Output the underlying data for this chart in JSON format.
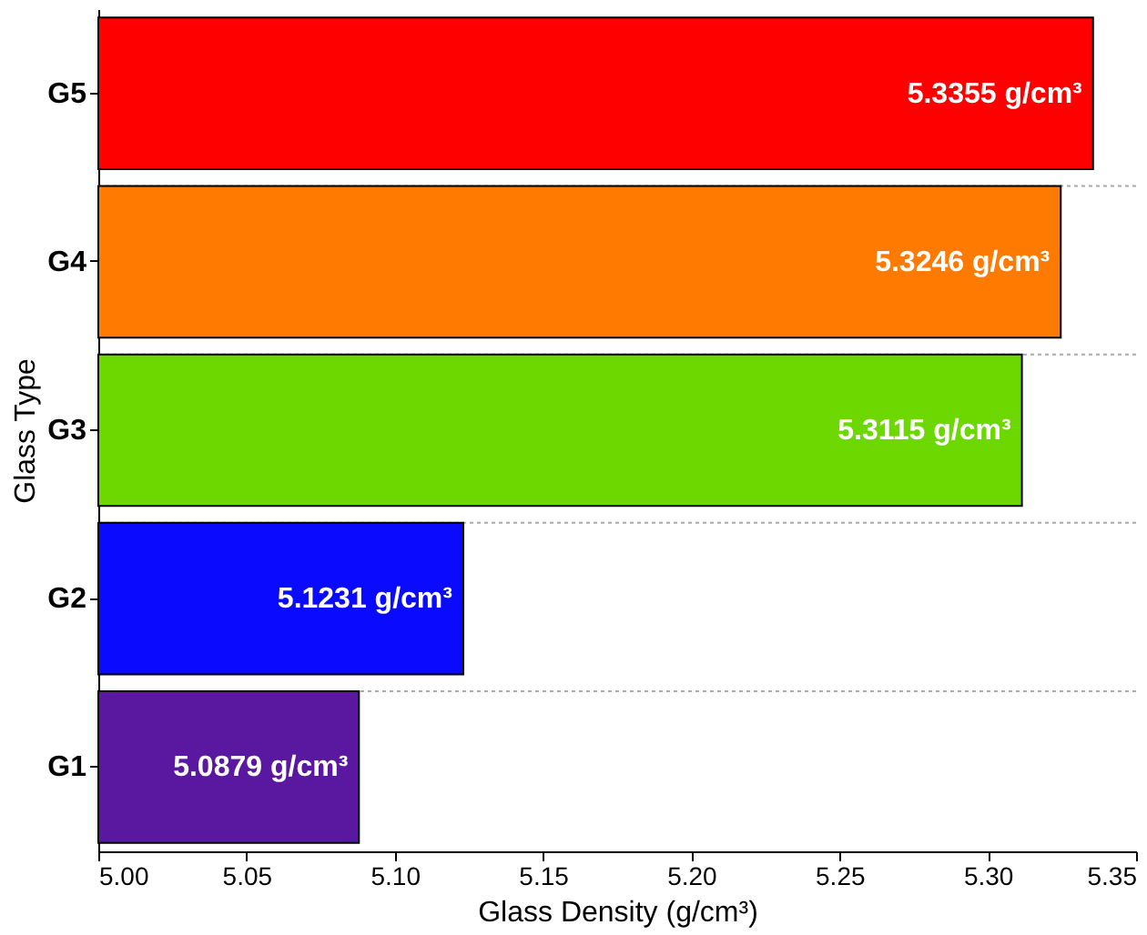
{
  "chart_data": {
    "type": "bar",
    "orientation": "horizontal",
    "xlabel": "Glass Density (g/cm³)",
    "ylabel": "Glass Type",
    "categories": [
      "G5",
      "G4",
      "G3",
      "G2",
      "G1"
    ],
    "values": [
      5.3355,
      5.3246,
      5.3115,
      5.1231,
      5.0879
    ],
    "colors": [
      "#ff0000",
      "#ff7a00",
      "#6cd800",
      "#0a0aff",
      "#5a18a0"
    ],
    "value_labels": [
      "5.3355 g/cm³",
      "5.3246 g/cm³",
      "5.3115 g/cm³",
      "5.1231 g/cm³",
      "5.0879 g/cm³"
    ],
    "xlim": [
      5.0,
      5.35
    ],
    "xticks": [
      {
        "value": 5.0,
        "label": "5.00"
      },
      {
        "value": 5.05,
        "label": "5.05"
      },
      {
        "value": 5.1,
        "label": "5.10"
      },
      {
        "value": 5.15,
        "label": "5.15"
      },
      {
        "value": 5.2,
        "label": "5.20"
      },
      {
        "value": 5.25,
        "label": "5.25"
      },
      {
        "value": 5.3,
        "label": "5.30"
      },
      {
        "value": 5.35,
        "label": "5.35"
      }
    ],
    "grid": "y"
  }
}
